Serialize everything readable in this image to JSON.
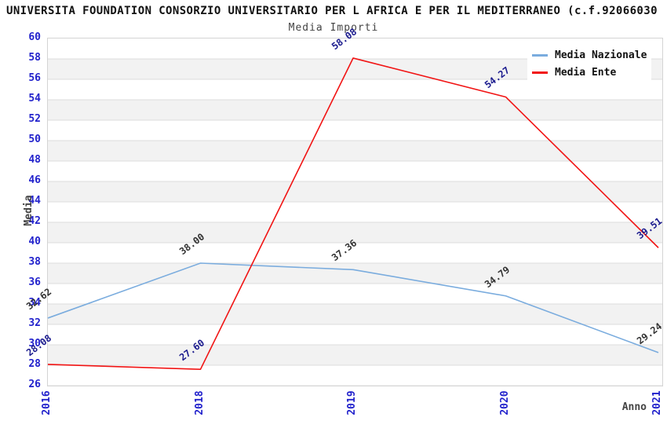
{
  "title": "UNIVERSITA FOUNDATION CONSORZIO UNIVERSITARIO PER L AFRICA E PER IL MEDITERRANEO (c.f.92066030",
  "subtitle": "Media Importi",
  "chart_data": {
    "type": "line",
    "title": "Media Importi",
    "xlabel": "Anno",
    "ylabel": "Media",
    "categories": [
      "2016",
      "2018",
      "2019",
      "2020",
      "2021"
    ],
    "series": [
      {
        "name": "Media Nazionale",
        "values": [
          32.62,
          38.0,
          37.36,
          34.79,
          29.24
        ],
        "labels": [
          "32.62",
          "38.00",
          "37.36",
          "34.79",
          "29.24"
        ],
        "color": "#7aacde",
        "label_color": "#333333"
      },
      {
        "name": "Media Ente",
        "values": [
          28.08,
          27.6,
          58.08,
          54.27,
          39.51
        ],
        "labels": [
          "28.08",
          "27.60",
          "58.08",
          "54.27",
          "39.51"
        ],
        "color": "#f11414",
        "label_color": "#1b1b8e"
      }
    ],
    "ylim": [
      26,
      60
    ],
    "ytick_step": 2,
    "grid": "horizontal",
    "gridline_color": "#dcdcdc",
    "band_colors": [
      "#ffffff",
      "#f2f2f2"
    ],
    "axis_tick_color": "#2222cc",
    "legend_position": "top-right"
  }
}
